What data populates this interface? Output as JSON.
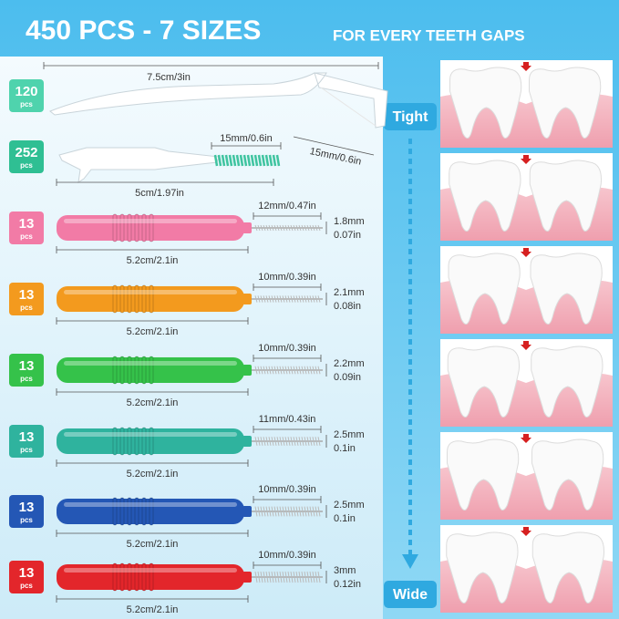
{
  "header": {
    "title": "450 PCS - 7 SIZES",
    "subtitle": "FOR EVERY TEETH GAPS"
  },
  "scale": {
    "tight": "Tight",
    "wide": "Wide"
  },
  "items": [
    {
      "count": "120",
      "unit": "pcs",
      "length": "7.5cm/3in",
      "head": "15mm/0.6in",
      "color": "#4fd3ad"
    },
    {
      "count": "252",
      "unit": "pcs",
      "tip": "15mm/0.6in",
      "length": "5cm/1.97in",
      "color": "#2fbf93"
    },
    {
      "count": "13",
      "unit": "pcs",
      "brush": "12mm/0.47in",
      "diameter_mm": "1.8mm",
      "diameter_in": "0.07in",
      "length": "5.2cm/2.1in",
      "color": "#f27ba6"
    },
    {
      "count": "13",
      "unit": "pcs",
      "brush": "10mm/0.39in",
      "diameter_mm": "2.1mm",
      "diameter_in": "0.08in",
      "length": "5.2cm/2.1in",
      "color": "#f39a1e"
    },
    {
      "count": "13",
      "unit": "pcs",
      "brush": "10mm/0.39in",
      "diameter_mm": "2.2mm",
      "diameter_in": "0.09in",
      "length": "5.2cm/2.1in",
      "color": "#35c24a"
    },
    {
      "count": "13",
      "unit": "pcs",
      "brush": "11mm/0.43in",
      "diameter_mm": "2.5mm",
      "diameter_in": "0.1in",
      "length": "5.2cm/2.1in",
      "color": "#2fb39e"
    },
    {
      "count": "13",
      "unit": "pcs",
      "brush": "10mm/0.39in",
      "diameter_mm": "2.5mm",
      "diameter_in": "0.1in",
      "length": "5.2cm/2.1in",
      "color": "#2457b5"
    },
    {
      "count": "13",
      "unit": "pcs",
      "brush": "10mm/0.39in",
      "diameter_mm": "3mm",
      "diameter_in": "0.12in",
      "length": "5.2cm/2.1in",
      "color": "#e3262b"
    }
  ]
}
